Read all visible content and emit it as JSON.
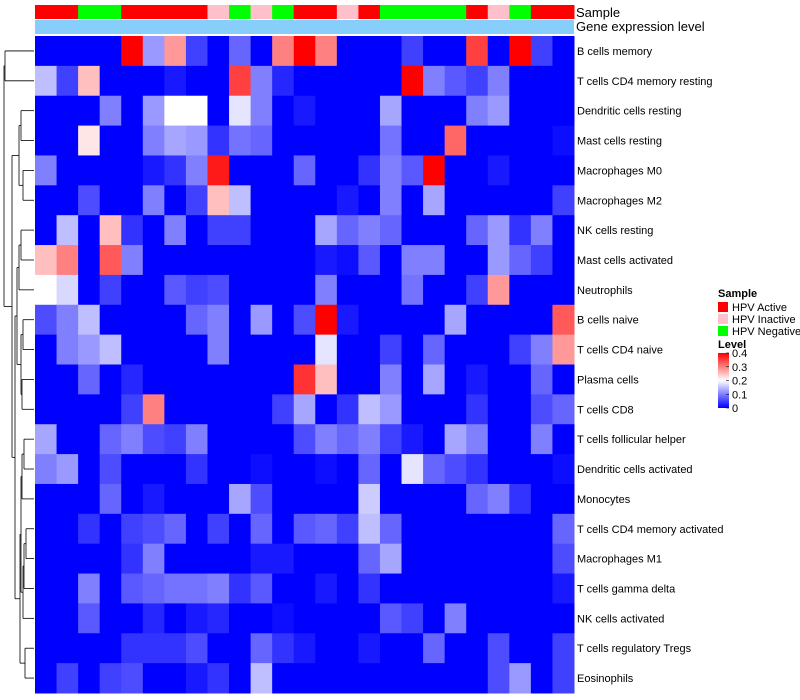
{
  "chart_data": {
    "type": "heatmap",
    "rows": [
      "B cells memory",
      "T cells CD4 memory resting",
      "Dendritic cells resting",
      "Mast cells resting",
      "Macrophages M0",
      "Macrophages M2",
      "NK cells resting",
      "Mast cells activated",
      "Neutrophils",
      "B cells naive",
      "T cells CD4 naive",
      "Plasma cells",
      "T cells CD8",
      "T cells follicular helper",
      "Dendritic cells activated",
      "Monocytes",
      "T cells CD4 memory activated",
      "Macrophages M1",
      "T cells gamma delta",
      "NK cells activated",
      "T cells regulatory  Tregs",
      "Eosinophils"
    ],
    "annotation_rows": [
      "Sample",
      "Gene expression level"
    ],
    "sample_groups": [
      "HPV Active",
      "HPV Active",
      "HPV Negative",
      "HPV Negative",
      "HPV Active",
      "HPV Active",
      "HPV Active",
      "HPV Active",
      "HPV Inactive",
      "HPV Negative",
      "HPV Inactive",
      "HPV Negative",
      "HPV Active",
      "HPV Active",
      "HPV Inactive",
      "HPV Active",
      "HPV Negative",
      "HPV Negative",
      "HPV Negative",
      "HPV Negative",
      "HPV Active",
      "HPV Inactive",
      "HPV Negative",
      "HPV Active",
      "HPV Active"
    ],
    "values": [
      [
        0.0,
        0.0,
        0.0,
        0.0,
        0.4,
        0.12,
        0.28,
        0.05,
        0.0,
        0.08,
        0.0,
        0.3,
        0.4,
        0.3,
        0.0,
        0.0,
        0.0,
        0.05,
        0.0,
        0.0,
        0.35,
        0.0,
        0.4,
        0.05,
        0.0
      ],
      [
        0.15,
        0.05,
        0.25,
        0.0,
        0.0,
        0.0,
        0.02,
        0.0,
        0.0,
        0.35,
        0.1,
        0.03,
        0.0,
        0.0,
        0.0,
        0.0,
        0.0,
        0.4,
        0.1,
        0.07,
        0.05,
        0.1,
        0.0,
        0.0,
        0.0
      ],
      [
        0.0,
        0.0,
        0.0,
        0.1,
        0.0,
        0.12,
        0.2,
        0.2,
        0.0,
        0.18,
        0.1,
        0.0,
        0.02,
        0.0,
        0.0,
        0.0,
        0.13,
        0.0,
        0.0,
        0.0,
        0.1,
        0.12,
        0.0,
        0.0,
        0.0
      ],
      [
        0.0,
        0.0,
        0.22,
        0.0,
        0.0,
        0.1,
        0.13,
        0.12,
        0.04,
        0.09,
        0.08,
        0.0,
        0.0,
        0.0,
        0.0,
        0.0,
        0.09,
        0.0,
        0.0,
        0.32,
        0.0,
        0.0,
        0.0,
        0.0,
        0.01
      ],
      [
        0.1,
        0.0,
        0.0,
        0.0,
        0.0,
        0.02,
        0.04,
        0.1,
        0.38,
        0.0,
        0.0,
        0.0,
        0.08,
        0.0,
        0.0,
        0.04,
        0.1,
        0.07,
        0.4,
        0.0,
        0.0,
        0.02,
        0.0,
        0.0,
        0.0
      ],
      [
        0.0,
        0.0,
        0.06,
        0.0,
        0.0,
        0.1,
        0.0,
        0.05,
        0.25,
        0.15,
        0.0,
        0.0,
        0.0,
        0.0,
        0.02,
        0.0,
        0.1,
        0.0,
        0.13,
        0.0,
        0.0,
        0.0,
        0.0,
        0.0,
        0.05
      ],
      [
        0.0,
        0.15,
        0.0,
        0.25,
        0.04,
        0.0,
        0.1,
        0.0,
        0.05,
        0.05,
        0.0,
        0.0,
        0.0,
        0.13,
        0.08,
        0.1,
        0.08,
        0.0,
        0.0,
        0.0,
        0.08,
        0.12,
        0.04,
        0.1,
        0.0
      ],
      [
        0.25,
        0.3,
        0.0,
        0.33,
        0.1,
        0.0,
        0.0,
        0.0,
        0.0,
        0.0,
        0.0,
        0.0,
        0.0,
        0.02,
        0.01,
        0.07,
        0.0,
        0.1,
        0.1,
        0.0,
        0.0,
        0.12,
        0.08,
        0.05,
        0.0
      ],
      [
        0.2,
        0.17,
        0.0,
        0.05,
        0.0,
        0.0,
        0.07,
        0.05,
        0.06,
        0.0,
        0.0,
        0.0,
        0.0,
        0.1,
        0.0,
        0.0,
        0.0,
        0.09,
        0.0,
        0.0,
        0.05,
        0.28,
        0.0,
        0.0,
        0.0
      ],
      [
        0.06,
        0.1,
        0.15,
        0.0,
        0.0,
        0.0,
        0.0,
        0.08,
        0.1,
        0.0,
        0.12,
        0.0,
        0.06,
        0.4,
        0.02,
        0.0,
        0.0,
        0.0,
        0.0,
        0.13,
        0.0,
        0.0,
        0.0,
        0.0,
        0.33
      ],
      [
        0.0,
        0.1,
        0.12,
        0.15,
        0.0,
        0.0,
        0.0,
        0.0,
        0.1,
        0.0,
        0.0,
        0.0,
        0.0,
        0.18,
        0.0,
        0.0,
        0.05,
        0.0,
        0.08,
        0.0,
        0.0,
        0.0,
        0.05,
        0.1,
        0.28
      ],
      [
        0.0,
        0.0,
        0.08,
        0.0,
        0.03,
        0.0,
        0.0,
        0.0,
        0.0,
        0.0,
        0.0,
        0.0,
        0.36,
        0.25,
        0.0,
        0.0,
        0.1,
        0.0,
        0.13,
        0.0,
        0.02,
        0.0,
        0.0,
        0.08,
        0.0
      ],
      [
        0.0,
        0.0,
        0.0,
        0.0,
        0.05,
        0.3,
        0.0,
        0.0,
        0.0,
        0.0,
        0.0,
        0.05,
        0.13,
        0.0,
        0.04,
        0.15,
        0.12,
        0.0,
        0.0,
        0.0,
        0.04,
        0.0,
        0.0,
        0.06,
        0.08
      ],
      [
        0.13,
        0.0,
        0.0,
        0.08,
        0.1,
        0.06,
        0.05,
        0.1,
        0.0,
        0.0,
        0.0,
        0.0,
        0.06,
        0.1,
        0.08,
        0.1,
        0.05,
        0.02,
        0.0,
        0.13,
        0.1,
        0.0,
        0.0,
        0.1,
        0.0
      ],
      [
        0.1,
        0.12,
        0.0,
        0.06,
        0.0,
        0.0,
        0.0,
        0.04,
        0.0,
        0.0,
        0.01,
        0.0,
        0.0,
        0.01,
        0.0,
        0.08,
        0.0,
        0.18,
        0.08,
        0.06,
        0.04,
        0.0,
        0.0,
        0.0,
        0.01
      ],
      [
        0.0,
        0.0,
        0.0,
        0.08,
        0.0,
        0.02,
        0.0,
        0.0,
        0.0,
        0.13,
        0.06,
        0.0,
        0.0,
        0.0,
        0.0,
        0.16,
        0.0,
        0.0,
        0.0,
        0.0,
        0.08,
        0.1,
        0.04,
        0.0,
        0.0
      ],
      [
        0.0,
        0.0,
        0.04,
        0.0,
        0.05,
        0.06,
        0.08,
        0.0,
        0.05,
        0.0,
        0.08,
        0.0,
        0.07,
        0.08,
        0.05,
        0.15,
        0.08,
        0.0,
        0.0,
        0.0,
        0.0,
        0.0,
        0.0,
        0.0,
        0.08
      ],
      [
        0.0,
        0.0,
        0.0,
        0.0,
        0.04,
        0.1,
        0.0,
        0.0,
        0.0,
        0.0,
        0.02,
        0.02,
        0.0,
        0.0,
        0.0,
        0.08,
        0.13,
        0.0,
        0.0,
        0.0,
        0.0,
        0.0,
        0.0,
        0.0,
        0.06
      ],
      [
        0.0,
        0.0,
        0.1,
        0.0,
        0.07,
        0.08,
        0.09,
        0.09,
        0.1,
        0.04,
        0.07,
        0.0,
        0.0,
        0.02,
        0.0,
        0.04,
        0.0,
        0.0,
        0.0,
        0.0,
        0.0,
        0.0,
        0.0,
        0.0,
        0.02
      ],
      [
        0.0,
        0.0,
        0.07,
        0.0,
        0.0,
        0.03,
        0.0,
        0.02,
        0.03,
        0.0,
        0.0,
        0.01,
        0.0,
        0.0,
        0.0,
        0.0,
        0.07,
        0.05,
        0.0,
        0.1,
        0.0,
        0.0,
        0.0,
        0.0,
        0.0
      ],
      [
        0.0,
        0.0,
        0.0,
        0.0,
        0.04,
        0.04,
        0.04,
        0.06,
        0.0,
        0.0,
        0.08,
        0.04,
        0.02,
        0.0,
        0.0,
        0.02,
        0.0,
        0.0,
        0.08,
        0.0,
        0.0,
        0.06,
        0.0,
        0.0,
        0.05
      ],
      [
        0.0,
        0.05,
        0.0,
        0.05,
        0.06,
        0.0,
        0.0,
        0.02,
        0.04,
        0.0,
        0.15,
        0.0,
        0.0,
        0.0,
        0.0,
        0.0,
        0.0,
        0.0,
        0.0,
        0.0,
        0.0,
        0.06,
        0.12,
        0.0,
        0.05
      ]
    ],
    "color_scale": {
      "min": 0,
      "max": 0.4,
      "low": "#0000ff",
      "mid": "#ffffff",
      "high": "#ff0000",
      "mid_value": 0.2
    },
    "legend": {
      "sample_title": "Sample",
      "groups": [
        {
          "name": "HPV Active",
          "color": "#ff0000"
        },
        {
          "name": "HPV Inactive",
          "color": "#ffc0cb"
        },
        {
          "name": "HPV Negative",
          "color": "#00ff00"
        }
      ],
      "level_title": "Level",
      "ticks": [
        "0.4",
        "0.3",
        "0.2",
        "0.1",
        "0"
      ],
      "tick_values": [
        0.4,
        0.3,
        0.2,
        0.1,
        0
      ]
    },
    "expression_bar_color": "#87cefa"
  }
}
